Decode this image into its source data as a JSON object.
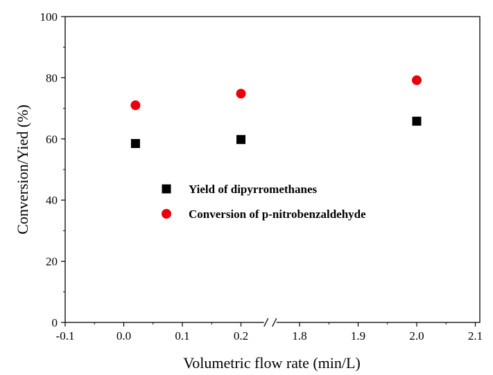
{
  "chart_data": {
    "type": "scatter",
    "xlabel": "Volumetric flow rate (min/L)",
    "ylabel": "Conversion/Yied  (%)",
    "ylim": [
      0,
      100
    ],
    "axis_break": "between 0.2 and 1.8",
    "x_tick_labels": [
      "-0.1",
      "0.0",
      "0.1",
      "0.2",
      "1.8",
      "1.9",
      "2.0",
      "2.1"
    ],
    "y_tick_labels": [
      "0",
      "20",
      "40",
      "60",
      "80",
      "100"
    ],
    "series": [
      {
        "name": "Yield of dipyrromethanes",
        "marker": "square",
        "color": "#000000",
        "x": [
          0.02,
          0.2,
          2.0
        ],
        "y": [
          58.5,
          59.8,
          65.8
        ]
      },
      {
        "name": "Conversion of p-nitrobenzaldehyde",
        "marker": "circle",
        "color": "#e8000b",
        "x": [
          0.02,
          0.2,
          2.0
        ],
        "y": [
          71.0,
          74.8,
          79.2
        ]
      }
    ],
    "legend_position": "center",
    "grid": false
  }
}
